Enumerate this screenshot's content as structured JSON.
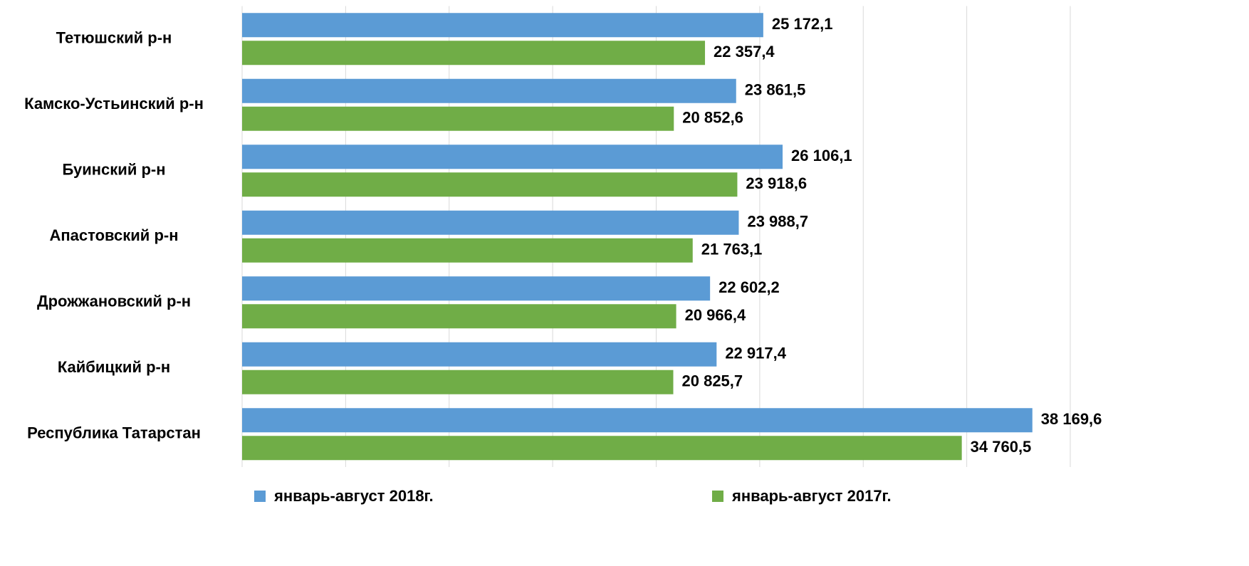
{
  "chart_data": {
    "type": "bar",
    "orientation": "horizontal",
    "categories": [
      "Тетюшский р-н",
      "Камско-Устьинский р-н",
      "Буинский   р-н",
      "Апастовский р-н",
      "Дрожжановский р-н",
      "Кайбицкий  р-н",
      "Республика Татарстан"
    ],
    "series": [
      {
        "name": "январь-август 2018г.",
        "color": "#5b9bd5",
        "values": [
          25172.1,
          23861.5,
          26106.1,
          23988.7,
          22602.2,
          22917.4,
          38169.6
        ],
        "value_labels": [
          "25 172,1",
          "23 861,5",
          "26 106,1",
          "23 988,7",
          "22 602,2",
          "22 917,4",
          "38 169,6"
        ]
      },
      {
        "name": "январь-август 2017г.",
        "color": "#70ad47",
        "values": [
          22357.4,
          20852.6,
          23918.6,
          21763.1,
          20966.4,
          20825.7,
          34760.5
        ],
        "value_labels": [
          "22 357,4",
          "20 852,6",
          "23 918,6",
          "21 763,1",
          "20 966,4",
          "20 825,7",
          "34 760,5"
        ]
      }
    ],
    "xlim": [
      0,
      40000
    ],
    "xticks": [
      0,
      5000,
      10000,
      15000,
      20000,
      25000,
      30000,
      35000,
      40000
    ],
    "grid": true,
    "legend": "bottom"
  }
}
